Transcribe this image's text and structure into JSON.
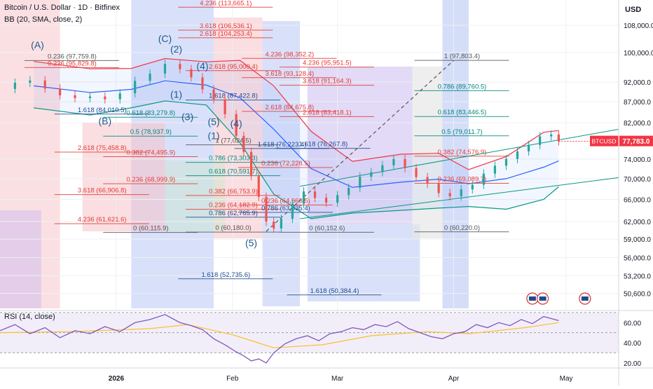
{
  "header": {
    "title": "Bitcoin / U.S. Dollar · 1D · Bitfinex",
    "indicator": "BB (20, SMA, close, 2)",
    "rsi_label": "RSI (14, close)",
    "currency": "USD",
    "ticker": "BTCUSD",
    "last_price": "77,783.0"
  },
  "colors": {
    "bull": "#26a69a",
    "bear": "#ef5350",
    "price_tag": "#f23645",
    "bb_upper": "#f23645",
    "bb_basis": "#2962ff",
    "bb_lower": "#089981",
    "rsi_line": "#7e57c2",
    "rsi_ma": "#fbc02d",
    "fib_red": "#e53935",
    "fib_teal": "#00897b",
    "fib_blue": "#1e4b8f"
  },
  "chart_data": {
    "type": "candlestick",
    "price_axis": {
      "min": 48500,
      "max": 116000,
      "log": true,
      "ticks": [
        "108,000.0",
        "100,000.0",
        "92,000.0",
        "87,000.0",
        "82,000.0",
        "74,000.0",
        "70,000.0",
        "66,000.0",
        "62,000.0",
        "59,000.0",
        "56,000.0",
        "53,200.0",
        "50,600.0"
      ]
    },
    "time_axis": {
      "start": "2025-12-01",
      "end": "2026-05-15",
      "ticks": [
        {
          "date": "2026-01-01",
          "label": "2026"
        },
        {
          "date": "2026-02-01",
          "label": "Feb"
        },
        {
          "date": "2026-03-01",
          "label": "Mar"
        },
        {
          "date": "2026-04-01",
          "label": "Apr"
        },
        {
          "date": "2026-05-01",
          "label": "May"
        }
      ]
    },
    "close_series": [
      [
        "2025-12-01",
        90200
      ],
      [
        "2025-12-05",
        91800
      ],
      [
        "2025-12-09",
        92400
      ],
      [
        "2025-12-13",
        90300
      ],
      [
        "2025-12-17",
        88600
      ],
      [
        "2025-12-21",
        87900
      ],
      [
        "2025-12-25",
        88300
      ],
      [
        "2025-12-29",
        87600
      ],
      [
        "2026-01-02",
        89100
      ],
      [
        "2026-01-06",
        92300
      ],
      [
        "2026-01-10",
        94200
      ],
      [
        "2026-01-14",
        96800
      ],
      [
        "2026-01-18",
        95400
      ],
      [
        "2026-01-21",
        93200
      ],
      [
        "2026-01-24",
        90100
      ],
      [
        "2026-01-27",
        87600
      ],
      [
        "2026-01-30",
        84000
      ],
      [
        "2026-02-02",
        79000
      ],
      [
        "2026-02-04",
        75500
      ],
      [
        "2026-02-06",
        70500
      ],
      [
        "2026-02-08",
        66500
      ],
      [
        "2026-02-10",
        62000
      ],
      [
        "2026-02-12",
        60800
      ],
      [
        "2026-02-14",
        62500
      ],
      [
        "2026-02-17",
        65200
      ],
      [
        "2026-02-20",
        67500
      ],
      [
        "2026-02-23",
        66300
      ],
      [
        "2026-02-26",
        65400
      ],
      [
        "2026-03-01",
        66800
      ],
      [
        "2026-03-04",
        68200
      ],
      [
        "2026-03-07",
        70400
      ],
      [
        "2026-03-10",
        71300
      ],
      [
        "2026-03-13",
        72700
      ],
      [
        "2026-03-16",
        74000
      ],
      [
        "2026-03-19",
        72100
      ],
      [
        "2026-03-22",
        70300
      ],
      [
        "2026-03-25",
        69000
      ],
      [
        "2026-03-28",
        67200
      ],
      [
        "2026-03-31",
        66600
      ],
      [
        "2026-04-03",
        67900
      ],
      [
        "2026-04-06",
        68800
      ],
      [
        "2026-04-09",
        71000
      ],
      [
        "2026-04-12",
        72600
      ],
      [
        "2026-04-15",
        74000
      ],
      [
        "2026-04-18",
        75600
      ],
      [
        "2026-04-21",
        77000
      ],
      [
        "2026-04-24",
        78900
      ],
      [
        "2026-04-27",
        79300
      ],
      [
        "2026-04-29",
        77783
      ]
    ],
    "bollinger": {
      "upper": [
        [
          "2025-12-10",
          97500
        ],
        [
          "2025-12-25",
          95500
        ],
        [
          "2026-01-05",
          95600
        ],
        [
          "2026-01-14",
          98300
        ],
        [
          "2026-01-25",
          97400
        ],
        [
          "2026-02-03",
          97800
        ],
        [
          "2026-02-12",
          91000
        ],
        [
          "2026-02-22",
          80000
        ],
        [
          "2026-03-05",
          73500
        ],
        [
          "2026-03-18",
          75000
        ],
        [
          "2026-03-28",
          75200
        ],
        [
          "2026-04-05",
          71800
        ],
        [
          "2026-04-15",
          74500
        ],
        [
          "2026-04-25",
          79800
        ],
        [
          "2026-04-29",
          80200
        ]
      ],
      "basis": [
        [
          "2025-12-10",
          91000
        ],
        [
          "2025-12-25",
          89300
        ],
        [
          "2026-01-05",
          90100
        ],
        [
          "2026-01-14",
          92300
        ],
        [
          "2026-01-25",
          91200
        ],
        [
          "2026-02-03",
          88000
        ],
        [
          "2026-02-12",
          80500
        ],
        [
          "2026-02-22",
          72000
        ],
        [
          "2026-03-05",
          68300
        ],
        [
          "2026-03-18",
          69300
        ],
        [
          "2026-03-28",
          69900
        ],
        [
          "2026-04-05",
          69000
        ],
        [
          "2026-04-15",
          70000
        ],
        [
          "2026-04-25",
          72300
        ],
        [
          "2026-04-29",
          73600
        ]
      ],
      "lower": [
        [
          "2025-12-10",
          85500
        ],
        [
          "2025-12-25",
          83800
        ],
        [
          "2026-01-05",
          85500
        ],
        [
          "2026-01-14",
          87200
        ],
        [
          "2026-01-25",
          86200
        ],
        [
          "2026-02-03",
          77500
        ],
        [
          "2026-02-12",
          67000
        ],
        [
          "2026-02-22",
          62500
        ],
        [
          "2026-03-05",
          63500
        ],
        [
          "2026-03-18",
          64000
        ],
        [
          "2026-03-28",
          64400
        ],
        [
          "2026-04-05",
          64700
        ],
        [
          "2026-04-15",
          64200
        ],
        [
          "2026-04-25",
          66000
        ],
        [
          "2026-04-29",
          68400
        ]
      ]
    },
    "projections": [
      {
        "label": "4.236 (113,665.1)",
        "x": "2026-01-25",
        "price": 113665.1,
        "color": "fib_red"
      },
      {
        "label": "3.618 (106,536.1)",
        "x": "2026-01-25",
        "price": 106536.1,
        "color": "fib_red"
      },
      {
        "label": "2.618 (104,253.4)",
        "x": "2026-01-25",
        "price": 104253.4,
        "color": "fib_red"
      },
      {
        "label": "1.618 (52,735.6)",
        "x": "2026-01-25",
        "price": 52735.6,
        "color": "fib_blue"
      },
      {
        "label": "4.236 (98,352.2)",
        "x": "2026-02-11",
        "price": 98352.2,
        "color": "fib_red"
      },
      {
        "label": "4.236 (95,951.5)",
        "x": "2026-02-21",
        "price": 95951.5,
        "color": "fib_red"
      },
      {
        "label": "3.618 (93,128.4)",
        "x": "2026-02-11",
        "price": 93128.4,
        "color": "fib_red"
      },
      {
        "label": "3.618 (91,164.3)",
        "x": "2026-02-21",
        "price": 91164.3,
        "color": "fib_red"
      },
      {
        "label": "2.618 (84,675.8)",
        "x": "2026-02-11",
        "price": 84675.8,
        "color": "fib_red"
      },
      {
        "label": "2.618 (83,418.1)",
        "x": "2026-02-21",
        "price": 83418.1,
        "color": "fib_red"
      },
      {
        "label": "1.618 (50,384.4)",
        "x": "2026-02-23",
        "price": 50384.4,
        "color": "fib_blue"
      },
      {
        "label": "1 (97,803.4)",
        "x": "2026-03-29",
        "price": 97803.4,
        "color": "fib_gray"
      },
      {
        "label": "0.786 (89,760.5)",
        "x": "2026-03-29",
        "price": 89760.5,
        "color": "fib_teal"
      },
      {
        "label": "0.618 (83,446.5)",
        "x": "2026-03-29",
        "price": 83446.5,
        "color": "fib_teal"
      },
      {
        "label": "0.5 (79,011.7)",
        "x": "2026-03-29",
        "price": 79011.7,
        "color": "fib_teal"
      },
      {
        "label": "0.382 (74,576.9)",
        "x": "2026-03-29",
        "price": 74576.9,
        "color": "fib_red"
      },
      {
        "label": "0.236 (69,089.7)",
        "x": "2026-03-29",
        "price": 69089.7,
        "color": "fib_red"
      },
      {
        "label": "0 (60,220.0)",
        "x": "2026-03-29",
        "price": 60220.0,
        "color": "fib_gray"
      },
      {
        "label": "1.618 (84,010.5)",
        "x": "2025-12-23",
        "price": 84010.5,
        "color": "fib_blue"
      },
      {
        "label": "0.618 (83,279.8)",
        "x": "2026-01-05",
        "price": 83279.8,
        "color": "fib_teal"
      },
      {
        "label": "0.5 (78,937.9)",
        "x": "2026-01-05",
        "price": 78937.9,
        "color": "fib_teal"
      },
      {
        "label": "2.618 (75,458.8)",
        "x": "2025-12-23",
        "price": 75458.8,
        "color": "fib_red"
      },
      {
        "label": "0.382 (74,495.9)",
        "x": "2026-01-05",
        "price": 74495.9,
        "color": "fib_red"
      },
      {
        "label": "0.236 (68,999.9)",
        "x": "2026-01-05",
        "price": 68999.9,
        "color": "fib_red"
      },
      {
        "label": "3.618 (66,906.8)",
        "x": "2025-12-23",
        "price": 66906.8,
        "color": "fib_red"
      },
      {
        "label": "4.236 (61,621.6)",
        "x": "2025-12-23",
        "price": 61621.6,
        "color": "fib_red"
      },
      {
        "label": "0 (60,115.9)",
        "x": "2026-01-05",
        "price": 60115.9,
        "color": "fib_gray"
      },
      {
        "label": "0.236 (95,829.8)",
        "x": "2025-12-15",
        "price": 95829.8,
        "color": "fib_red"
      },
      {
        "label": "0.236 (97,759.8)",
        "x": "2025-12-15",
        "price": 97759.8,
        "color": "fib_gray"
      },
      {
        "label": "2.618 (95,000.4)",
        "x": "2026-01-27",
        "price": 95000.4,
        "color": "fib_red"
      },
      {
        "label": "1.618 (87,422.8)",
        "x": "2026-01-27",
        "price": 87422.8,
        "color": "fib_blue"
      },
      {
        "label": "1 (77,024.5)",
        "x": "2026-01-27",
        "price": 77024.5,
        "color": "fib_gray"
      },
      {
        "label": "0.786 (73,303.3)",
        "x": "2026-01-27",
        "price": 73303.3,
        "color": "fib_teal"
      },
      {
        "label": "0.618 (70,591.7)",
        "x": "2026-01-27",
        "price": 70591.7,
        "color": "fib_teal"
      },
      {
        "label": "0.382 (66,753.9)",
        "x": "2026-01-27",
        "price": 66753.9,
        "color": "fib_red"
      },
      {
        "label": "0.236 (64,182.9)",
        "x": "2026-01-27",
        "price": 64182.9,
        "color": "fib_red"
      },
      {
        "label": "0.786 (62,765.9)",
        "x": "2026-01-27",
        "price": 62765.9,
        "color": "fib_blue"
      },
      {
        "label": "0 (60,180.0)",
        "x": "2026-01-27",
        "price": 60180.0,
        "color": "fib_gray"
      },
      {
        "label": "1.618 (76,223.4)",
        "x": "2026-02-09",
        "price": 76223.4,
        "color": "fib_blue"
      },
      {
        "label": "1.618 (76,267.8)",
        "x": "2026-02-20",
        "price": 76267.8,
        "color": "fib_blue"
      },
      {
        "label": "0.236 (72,228.5)",
        "x": "2026-02-10",
        "price": 72228.5,
        "color": "fib_red"
      },
      {
        "label": "0.236 (64,966.5)",
        "x": "2026-02-10",
        "price": 64966.5,
        "color": "fib_red"
      },
      {
        "label": "0.786 (63,635.4)",
        "x": "2026-02-10",
        "price": 63635.4,
        "color": "fib_blue"
      },
      {
        "label": "0 (60,152.6)",
        "x": "2026-02-21",
        "price": 60152.6,
        "color": "fib_gray"
      }
    ],
    "wave_labels": [
      {
        "text": "(A)",
        "x": "2025-12-11",
        "price": 101200
      },
      {
        "text": "(B)",
        "x": "2025-12-29",
        "price": 81600
      },
      {
        "text": "(C)",
        "x": "2026-01-14",
        "price": 103000
      },
      {
        "text": "(2)",
        "x": "2026-01-17",
        "price": 100000
      },
      {
        "text": "(4)",
        "x": "2026-01-24",
        "price": 95300
      },
      {
        "text": "(1)",
        "x": "2026-01-17",
        "price": 88000
      },
      {
        "text": "(3)",
        "x": "2026-01-20",
        "price": 82600
      },
      {
        "text": "(5)",
        "x": "2026-01-27",
        "price": 81400
      },
      {
        "text": "(1)",
        "x": "2026-01-27",
        "price": 78300
      },
      {
        "text": "(4)",
        "x": "2026-02-02",
        "price": 81000
      },
      {
        "text": "(5)",
        "x": "2026-02-06",
        "price": 57800
      }
    ],
    "rsi": {
      "axis": {
        "min": 15,
        "max": 72,
        "ticks": [
          "60.00",
          "40.00",
          "20.00"
        ],
        "bands": [
          30,
          70
        ]
      },
      "values": [
        [
          "2025-12-01",
          52
        ],
        [
          "2025-12-05",
          58
        ],
        [
          "2025-12-09",
          49
        ],
        [
          "2025-12-13",
          55
        ],
        [
          "2025-12-17",
          45
        ],
        [
          "2025-12-21",
          52
        ],
        [
          "2025-12-25",
          49
        ],
        [
          "2025-12-29",
          56
        ],
        [
          "2026-01-02",
          51
        ],
        [
          "2026-01-06",
          60
        ],
        [
          "2026-01-10",
          63
        ],
        [
          "2026-01-14",
          68
        ],
        [
          "2026-01-18",
          60
        ],
        [
          "2026-01-21",
          57
        ],
        [
          "2026-01-24",
          53
        ],
        [
          "2026-01-27",
          44
        ],
        [
          "2026-01-30",
          38
        ],
        [
          "2026-02-02",
          31
        ],
        [
          "2026-02-04",
          27
        ],
        [
          "2026-02-06",
          22
        ],
        [
          "2026-02-08",
          24
        ],
        [
          "2026-02-10",
          20
        ],
        [
          "2026-02-12",
          30
        ],
        [
          "2026-02-15",
          39
        ],
        [
          "2026-02-18",
          44
        ],
        [
          "2026-02-21",
          47
        ],
        [
          "2026-02-24",
          42
        ],
        [
          "2026-02-27",
          49
        ],
        [
          "2026-03-02",
          51
        ],
        [
          "2026-03-05",
          55
        ],
        [
          "2026-03-08",
          53
        ],
        [
          "2026-03-11",
          58
        ],
        [
          "2026-03-14",
          56
        ],
        [
          "2026-03-17",
          61
        ],
        [
          "2026-03-20",
          54
        ],
        [
          "2026-03-23",
          50
        ],
        [
          "2026-03-26",
          46
        ],
        [
          "2026-03-29",
          44
        ],
        [
          "2026-04-01",
          49
        ],
        [
          "2026-04-04",
          51
        ],
        [
          "2026-04-07",
          58
        ],
        [
          "2026-04-10",
          55
        ],
        [
          "2026-04-13",
          60
        ],
        [
          "2026-04-16",
          57
        ],
        [
          "2026-04-19",
          63
        ],
        [
          "2026-04-22",
          59
        ],
        [
          "2026-04-25",
          66
        ],
        [
          "2026-04-27",
          64
        ],
        [
          "2026-04-29",
          62
        ]
      ],
      "ma": [
        [
          "2025-12-01",
          50
        ],
        [
          "2025-12-20",
          51
        ],
        [
          "2026-01-10",
          54
        ],
        [
          "2026-01-20",
          58
        ],
        [
          "2026-02-01",
          48
        ],
        [
          "2026-02-12",
          35
        ],
        [
          "2026-02-25",
          38
        ],
        [
          "2026-03-10",
          47
        ],
        [
          "2026-03-25",
          51
        ],
        [
          "2026-04-05",
          49
        ],
        [
          "2026-04-20",
          55
        ],
        [
          "2026-04-29",
          60
        ]
      ]
    }
  }
}
